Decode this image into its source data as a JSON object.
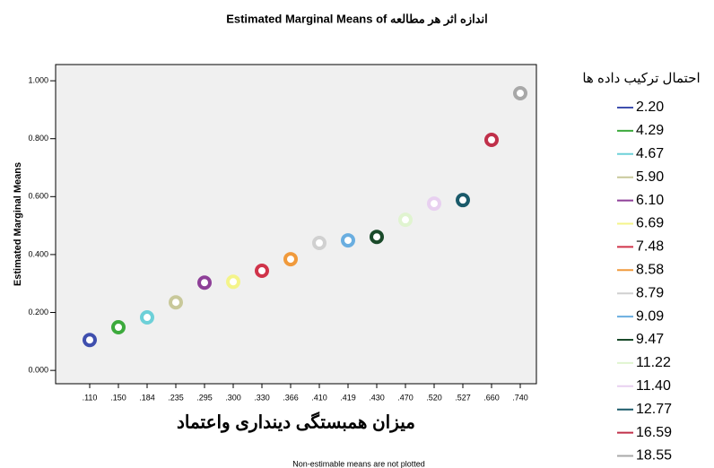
{
  "chart_data": {
    "type": "scatter",
    "title": "Estimated Marginal Means of اندازه اثر هر مطالعه",
    "y_label": "Estimated Marginal Means",
    "x_label": "میزان همبستگی دینداری واعتماد",
    "legend_title": "احتمال ترکیب داده ها",
    "footnote": "Non-estimable means are not plotted",
    "categories": [
      ".110",
      ".150",
      ".184",
      ".235",
      ".295",
      ".300",
      ".330",
      ".366",
      ".410",
      ".419",
      ".430",
      ".470",
      ".520",
      ".527",
      ".660",
      ".740"
    ],
    "ylim": [
      -0.046,
      1.056
    ],
    "yticks": [
      {
        "value": 0,
        "label": "0.000"
      },
      {
        "value": 0.2,
        "label": "0.200"
      },
      {
        "value": 0.4,
        "label": "0.400"
      },
      {
        "value": 0.6,
        "label": "0.600"
      },
      {
        "value": 0.8,
        "label": "0.800"
      },
      {
        "value": 1,
        "label": "1.000"
      }
    ],
    "series": [
      {
        "name": "2.20",
        "color": "#3f4fae",
        "values": [
          0.105,
          null,
          null,
          null,
          null,
          null,
          null,
          null,
          null,
          null,
          null,
          null,
          null,
          null,
          null,
          null
        ]
      },
      {
        "name": "4.29",
        "color": "#3caa3c",
        "values": [
          null,
          0.149,
          null,
          null,
          null,
          null,
          null,
          null,
          null,
          null,
          null,
          null,
          null,
          null,
          null,
          null
        ]
      },
      {
        "name": "4.67",
        "color": "#6dd0d8",
        "values": [
          null,
          null,
          0.183,
          null,
          null,
          null,
          null,
          null,
          null,
          null,
          null,
          null,
          null,
          null,
          null,
          null
        ]
      },
      {
        "name": "5.90",
        "color": "#c8c89a",
        "values": [
          null,
          null,
          null,
          0.235,
          null,
          null,
          null,
          null,
          null,
          null,
          null,
          null,
          null,
          null,
          null,
          null
        ]
      },
      {
        "name": "6.10",
        "color": "#8e3f98",
        "values": [
          null,
          null,
          null,
          null,
          0.303,
          null,
          null,
          null,
          null,
          null,
          null,
          null,
          null,
          null,
          null,
          null
        ]
      },
      {
        "name": "6.69",
        "color": "#f4f48a",
        "values": [
          null,
          null,
          null,
          null,
          null,
          0.306,
          null,
          null,
          null,
          null,
          null,
          null,
          null,
          null,
          null,
          null
        ]
      },
      {
        "name": "7.48",
        "color": "#d0344a",
        "values": [
          null,
          null,
          null,
          null,
          null,
          null,
          0.344,
          null,
          null,
          null,
          null,
          null,
          null,
          null,
          null,
          null
        ]
      },
      {
        "name": "8.58",
        "color": "#f09a3c",
        "values": [
          null,
          null,
          null,
          null,
          null,
          null,
          null,
          0.384,
          null,
          null,
          null,
          null,
          null,
          null,
          null,
          null
        ]
      },
      {
        "name": "8.79",
        "color": "#d0d0d0",
        "values": [
          null,
          null,
          null,
          null,
          null,
          null,
          null,
          null,
          0.44,
          null,
          null,
          null,
          null,
          null,
          null,
          null
        ]
      },
      {
        "name": "9.09",
        "color": "#6aaee0",
        "values": [
          null,
          null,
          null,
          null,
          null,
          null,
          null,
          null,
          null,
          0.449,
          null,
          null,
          null,
          null,
          null,
          null
        ]
      },
      {
        "name": "9.47",
        "color": "#1a4a2a",
        "values": [
          null,
          null,
          null,
          null,
          null,
          null,
          null,
          null,
          null,
          null,
          0.461,
          null,
          null,
          null,
          null,
          null
        ]
      },
      {
        "name": "11.22",
        "color": "#e0f4d0",
        "values": [
          null,
          null,
          null,
          null,
          null,
          null,
          null,
          null,
          null,
          null,
          null,
          0.52,
          null,
          null,
          null,
          null
        ]
      },
      {
        "name": "11.40",
        "color": "#e8d0f0",
        "values": [
          null,
          null,
          null,
          null,
          null,
          null,
          null,
          null,
          null,
          null,
          null,
          null,
          0.576,
          null,
          null,
          null
        ]
      },
      {
        "name": "12.77",
        "color": "#1a5a6a",
        "values": [
          null,
          null,
          null,
          null,
          null,
          null,
          null,
          null,
          null,
          null,
          null,
          null,
          null,
          0.588,
          null,
          null
        ]
      },
      {
        "name": "16.59",
        "color": "#c0304a",
        "values": [
          null,
          null,
          null,
          null,
          null,
          null,
          null,
          null,
          null,
          null,
          null,
          null,
          null,
          null,
          0.796,
          null
        ]
      },
      {
        "name": "18.55",
        "color": "#a8a8a8",
        "values": [
          null,
          null,
          null,
          null,
          null,
          null,
          null,
          null,
          null,
          null,
          null,
          null,
          null,
          null,
          null,
          0.957
        ]
      }
    ]
  }
}
